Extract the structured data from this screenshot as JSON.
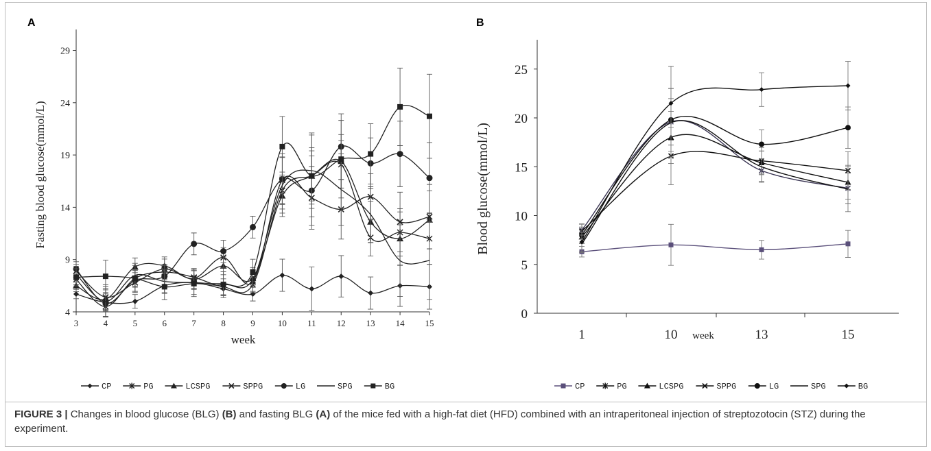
{
  "caption": {
    "label": "FIGURE 3 |",
    "text_1": " Changes in blood glucose (BLG) ",
    "panel_b_ref": "(B)",
    "text_2": " and fasting BLG ",
    "panel_a_ref": "(A)",
    "text_3": " of the mice fed with a high-fat diet (HFD) combined with an intraperitoneal injection of streptozotocin (STZ) during the experiment."
  },
  "chart_data": [
    {
      "panel": "A",
      "type": "line",
      "xlabel": "week",
      "ylabel": "Fasting  blood  glucose(mmol/L)",
      "x": [
        3,
        4,
        5,
        6,
        7,
        8,
        9,
        10,
        11,
        12,
        13,
        14,
        15
      ],
      "ylim": [
        4,
        31
      ],
      "yticks": [
        4,
        9,
        14,
        19,
        24,
        29
      ],
      "grid": false,
      "legend_position": "bottom",
      "series": [
        {
          "name": "CP",
          "marker": "diamond",
          "values": [
            5.7,
            4.9,
            5.0,
            6.5,
            6.8,
            6.2,
            5.7,
            7.5,
            6.2,
            7.4,
            5.8,
            6.5,
            6.4
          ]
        },
        {
          "name": "PG",
          "marker": "star",
          "values": [
            7.1,
            4.5,
            7.2,
            7.8,
            7.3,
            6.4,
            6.6,
            15.6,
            17.0,
            18.1,
            11.1,
            11.6,
            11.0
          ]
        },
        {
          "name": "LCSPG",
          "marker": "triangle",
          "values": [
            6.5,
            5.2,
            8.3,
            8.4,
            7.1,
            8.4,
            7.2,
            15.1,
            17.0,
            18.4,
            12.6,
            11.0,
            12.8
          ]
        },
        {
          "name": "SPPG",
          "marker": "x",
          "values": [
            7.9,
            5.4,
            6.8,
            8.1,
            7.2,
            9.2,
            6.9,
            16.6,
            14.9,
            13.8,
            15.0,
            12.6,
            13.1
          ]
        },
        {
          "name": "LG",
          "marker": "circle",
          "values": [
            8.1,
            4.8,
            7.0,
            7.4,
            10.5,
            9.8,
            12.1,
            16.7,
            15.6,
            19.8,
            18.2,
            19.1,
            16.8
          ]
        },
        {
          "name": "SPG",
          "marker": "none",
          "values": [
            7.6,
            5.0,
            7.5,
            6.9,
            6.8,
            6.7,
            7.1,
            16.1,
            17.5,
            15.7,
            13.3,
            8.9,
            8.9
          ]
        },
        {
          "name": "BG",
          "marker": "square",
          "values": [
            7.3,
            7.4,
            7.2,
            6.4,
            6.7,
            6.6,
            7.8,
            19.8,
            17.0,
            18.6,
            19.1,
            23.6,
            22.7
          ]
        }
      ]
    },
    {
      "panel": "B",
      "type": "line",
      "xlabel": "week",
      "ylabel": "Blood  glucose(mmol/L)",
      "categories": [
        "1",
        "10",
        "13",
        "15"
      ],
      "ylim": [
        0,
        28
      ],
      "yticks": [
        0,
        5,
        10,
        15,
        20,
        25
      ],
      "grid": false,
      "legend_position": "bottom",
      "series": [
        {
          "name": "CP",
          "marker": "square",
          "values": [
            6.3,
            7.0,
            6.5,
            7.1
          ]
        },
        {
          "name": "PG",
          "marker": "star",
          "values": [
            8.5,
            19.6,
            14.6,
            12.8
          ]
        },
        {
          "name": "LCSPG",
          "marker": "triangle",
          "values": [
            7.8,
            18.0,
            15.4,
            13.4
          ]
        },
        {
          "name": "SPPG",
          "marker": "x",
          "values": [
            8.4,
            16.1,
            15.6,
            14.6
          ]
        },
        {
          "name": "LG",
          "marker": "circle",
          "values": [
            8.0,
            19.8,
            17.3,
            19.0
          ]
        },
        {
          "name": "SPG",
          "marker": "none",
          "values": [
            7.1,
            19.5,
            15.0,
            12.7
          ]
        },
        {
          "name": "BG",
          "marker": "diamond",
          "values": [
            7.3,
            21.5,
            22.9,
            23.3
          ]
        }
      ]
    }
  ]
}
